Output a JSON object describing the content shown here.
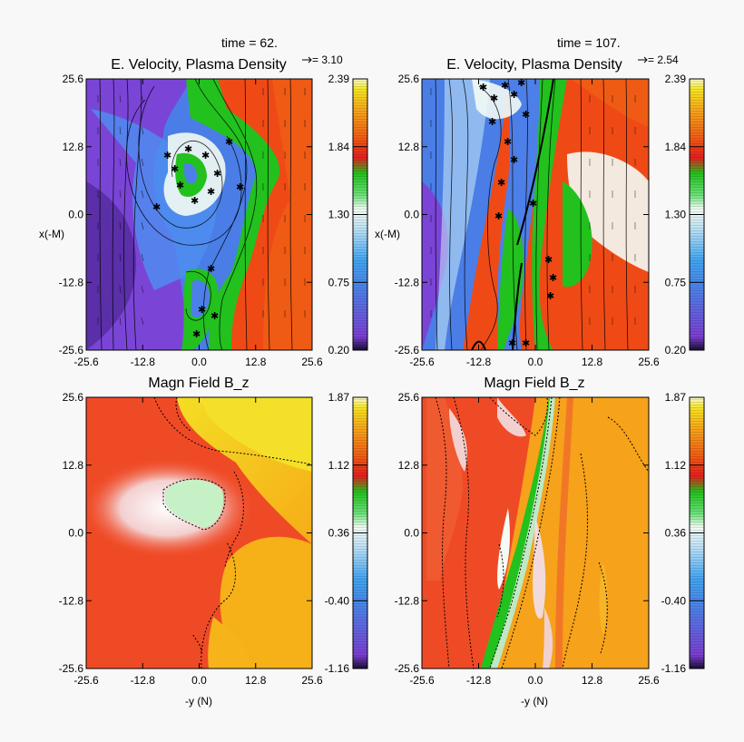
{
  "chart_data": [
    {
      "type": "heatmap",
      "panel": "top-left",
      "time_label": "time =  62.",
      "title": "E. Velocity, Plasma Density",
      "arrow_scale": "= 3.10",
      "ylabel": "x(-M)",
      "xlabel": "",
      "xlim": [
        -25.6,
        25.6
      ],
      "ylim": [
        -25.6,
        25.6
      ],
      "x_ticks": [
        "-25.6",
        "-12.8",
        "0.0",
        "12.8",
        "25.6"
      ],
      "y_ticks": [
        "25.6",
        "12.8",
        "0.0",
        "-12.8",
        "-25.6"
      ],
      "colorbar_ticks": [
        "2.39",
        "1.84",
        "1.30",
        "0.75",
        "0.20"
      ],
      "colorbar_range": [
        0.2,
        2.39
      ]
    },
    {
      "type": "heatmap",
      "panel": "top-right",
      "time_label": "time = 107.",
      "title": "E. Velocity, Plasma Density",
      "arrow_scale": "= 2.54",
      "ylabel": "x(-M)",
      "xlabel": "",
      "xlim": [
        -25.6,
        25.6
      ],
      "ylim": [
        -25.6,
        25.6
      ],
      "x_ticks": [
        "-25.6",
        "-12.8",
        "0.0",
        "12.8",
        "25.6"
      ],
      "y_ticks": [
        "25.6",
        "12.8",
        "0.0",
        "-12.8",
        "-25.6"
      ],
      "colorbar_ticks": [
        "2.39",
        "1.84",
        "1.30",
        "0.75",
        "0.20"
      ],
      "colorbar_range": [
        0.2,
        2.39
      ]
    },
    {
      "type": "heatmap",
      "panel": "bottom-left",
      "title": "Magn Field B_z",
      "xlabel": "-y (N)",
      "ylabel": "",
      "xlim": [
        -25.6,
        25.6
      ],
      "ylim": [
        -25.6,
        25.6
      ],
      "x_ticks": [
        "-25.6",
        "-12.8",
        "0.0",
        "12.8",
        "25.6"
      ],
      "y_ticks": [
        "25.6",
        "12.8",
        "0.0",
        "-12.8",
        "-25.6"
      ],
      "colorbar_ticks": [
        "1.87",
        "1.12",
        "0.36",
        "-0.40",
        "-1.16"
      ],
      "colorbar_range": [
        -1.16,
        1.87
      ]
    },
    {
      "type": "heatmap",
      "panel": "bottom-right",
      "title": "Magn Field B_z",
      "xlabel": "-y (N)",
      "ylabel": "",
      "xlim": [
        -25.6,
        25.6
      ],
      "ylim": [
        -25.6,
        25.6
      ],
      "x_ticks": [
        "-25.6",
        "-12.8",
        "0.0",
        "12.8",
        "25.6"
      ],
      "y_ticks": [
        "25.6",
        "12.8",
        "0.0",
        "-12.8",
        "-25.6"
      ],
      "colorbar_ticks": [
        "1.87",
        "1.12",
        "0.36",
        "-0.40",
        "-1.16"
      ],
      "colorbar_range": [
        -1.16,
        1.87
      ]
    }
  ],
  "colors": {
    "colormap": [
      "#1a0d33",
      "#7a3fd1",
      "#4d7fe8",
      "#41a4f0",
      "#bfe2f5",
      "#f3fbf4",
      "#6ee07a",
      "#22c11e",
      "#e51e1e",
      "#ef5a14",
      "#f6a21a",
      "#f6e31e",
      "#fbfbd2"
    ],
    "stars": "#f2e222"
  }
}
